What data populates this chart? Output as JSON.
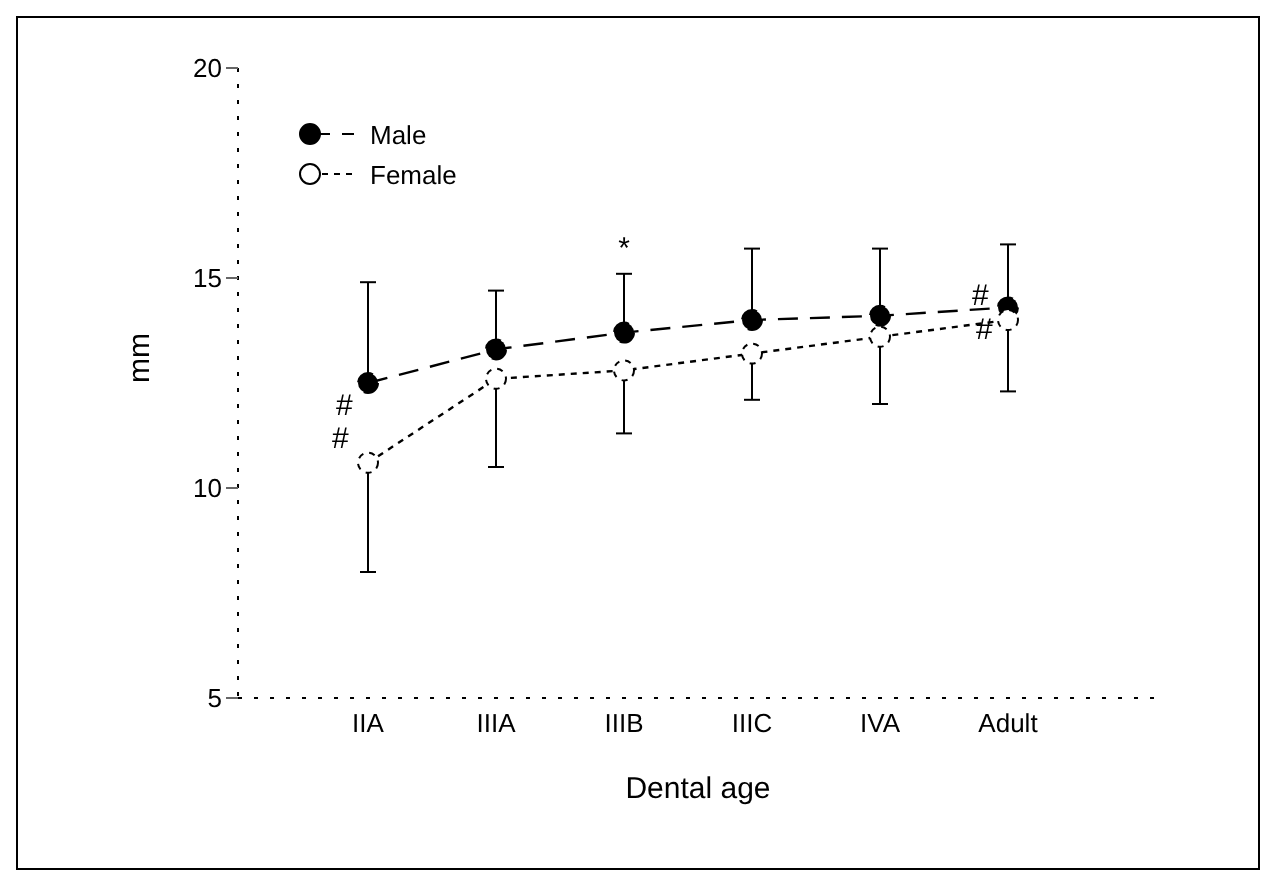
{
  "chart_data": {
    "type": "line",
    "xlabel": "Dental age",
    "ylabel": "mm",
    "categories": [
      "IIA",
      "IIIA",
      "IIIB",
      "IIIC",
      "IVA",
      "Adult"
    ],
    "series": [
      {
        "name": "Male",
        "color": "#000000",
        "marker": "circle",
        "line_style": "dashed",
        "values": [
          12.5,
          13.3,
          13.7,
          14.0,
          14.1,
          14.3
        ],
        "errors": [
          [
            12.5,
            14.9
          ],
          [
            13.3,
            14.7
          ],
          [
            13.7,
            15.1
          ],
          [
            14.0,
            15.7
          ],
          [
            14.1,
            15.7
          ],
          [
            14.3,
            15.8
          ]
        ]
      },
      {
        "name": "Female",
        "color": "#000000",
        "marker": "circle",
        "line_style": "dotted",
        "values": [
          10.6,
          12.6,
          12.8,
          13.2,
          13.6,
          14.0
        ],
        "errors": [
          [
            8.0,
            10.6
          ],
          [
            10.5,
            12.6
          ],
          [
            11.3,
            12.8
          ],
          [
            12.1,
            13.2
          ],
          [
            12.0,
            13.6
          ],
          [
            12.3,
            14.0
          ]
        ]
      }
    ],
    "ylim": [
      5,
      20
    ],
    "yticks": [
      5,
      10,
      15,
      20
    ],
    "grid": false,
    "legend": "top left",
    "annotations": [
      {
        "text": "#",
        "x": "IIA",
        "y": 12.5
      },
      {
        "text": "#",
        "x": "IIA",
        "y": 10.6
      },
      {
        "text": "*",
        "x": "IIIB",
        "y": 15.1
      },
      {
        "text": "#",
        "x": "Adult",
        "y": 14.3
      },
      {
        "text": "#",
        "x": "Adult",
        "y": 14.0
      }
    ]
  }
}
